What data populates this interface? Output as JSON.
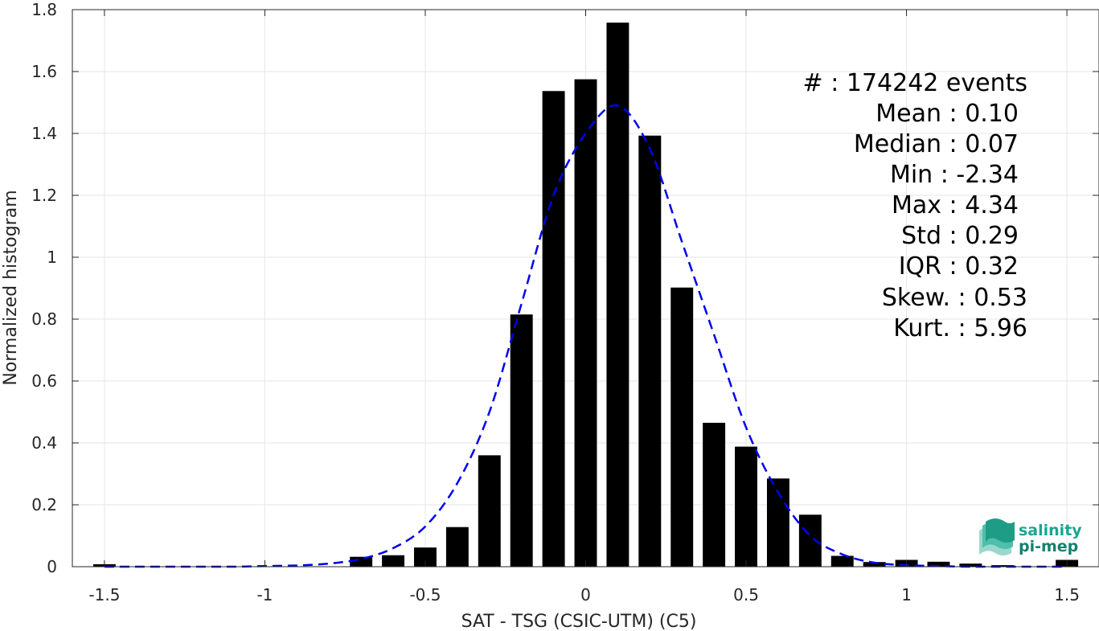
{
  "chart_data": {
    "type": "bar",
    "xlabel": "SAT - TSG (CSIC-UTM) (C5)",
    "ylabel": "Normalized histogram",
    "xlim": [
      -1.6,
      1.6
    ],
    "ylim": [
      0,
      1.8
    ],
    "grid": true,
    "xticks": [
      -1.5,
      -1,
      -0.5,
      0,
      0.5,
      1,
      1.5
    ],
    "xtick_labels": [
      "-1.5",
      "-1",
      "-0.5",
      "0",
      "0.5",
      "1",
      "1.5"
    ],
    "yticks": [
      0,
      0.2,
      0.4,
      0.6,
      0.8,
      1,
      1.2,
      1.4,
      1.6,
      1.8
    ],
    "ytick_labels": [
      "0",
      "0.2",
      "0.4",
      "0.6",
      "0.8",
      "1",
      "1.2",
      "1.4",
      "1.6",
      "1.8"
    ],
    "bar_width": 0.07,
    "bar_color": "#000000",
    "bins_center": [
      -1.5,
      -0.7,
      -0.6,
      -0.5,
      -0.4,
      -0.3,
      -0.2,
      -0.1,
      0.0,
      0.1,
      0.2,
      0.3,
      0.4,
      0.5,
      0.6,
      0.7,
      0.8,
      0.9,
      1.0,
      1.1,
      1.2,
      1.3,
      1.5
    ],
    "values": [
      0.008,
      0.032,
      0.037,
      0.062,
      0.128,
      0.36,
      0.815,
      1.537,
      1.575,
      1.758,
      1.393,
      0.902,
      0.465,
      0.388,
      0.285,
      0.168,
      0.035,
      0.015,
      0.022,
      0.016,
      0.01,
      0.005,
      0.022
    ],
    "fit_curve": {
      "style": "dashed",
      "color": "#0000ee",
      "x": [
        -1.5,
        -1.4,
        -1.3,
        -1.2,
        -1.1,
        -1.0,
        -0.9,
        -0.8,
        -0.7,
        -0.6,
        -0.5,
        -0.4,
        -0.3,
        -0.2,
        -0.1,
        0.0,
        0.1,
        0.2,
        0.3,
        0.4,
        0.5,
        0.6,
        0.7,
        0.8,
        0.9,
        1.0,
        1.1,
        1.2,
        1.3,
        1.4,
        1.5
      ],
      "y": [
        0.0,
        0.0,
        0.0,
        0.0,
        0.0,
        0.002,
        0.004,
        0.01,
        0.025,
        0.06,
        0.13,
        0.27,
        0.5,
        0.85,
        1.2,
        1.4,
        1.49,
        1.35,
        1.05,
        0.75,
        0.45,
        0.24,
        0.1,
        0.04,
        0.013,
        0.005,
        0.002,
        0.0,
        0.0,
        0.0,
        0.0
      ]
    },
    "stats": [
      {
        "label": "#  : 174242 events"
      },
      {
        "label": "Mean : 0.10"
      },
      {
        "label": "Median : 0.07"
      },
      {
        "label": "Min : -2.34"
      },
      {
        "label": "Max : 4.34"
      },
      {
        "label": "Std : 0.29"
      },
      {
        "label": "IQR : 0.32"
      },
      {
        "label": "Skew. : 0.53"
      },
      {
        "label": "Kurt. : 5.96"
      }
    ]
  },
  "logo": {
    "line1": "salinity",
    "line2": "pi-mep",
    "color": "#1aa58f"
  }
}
